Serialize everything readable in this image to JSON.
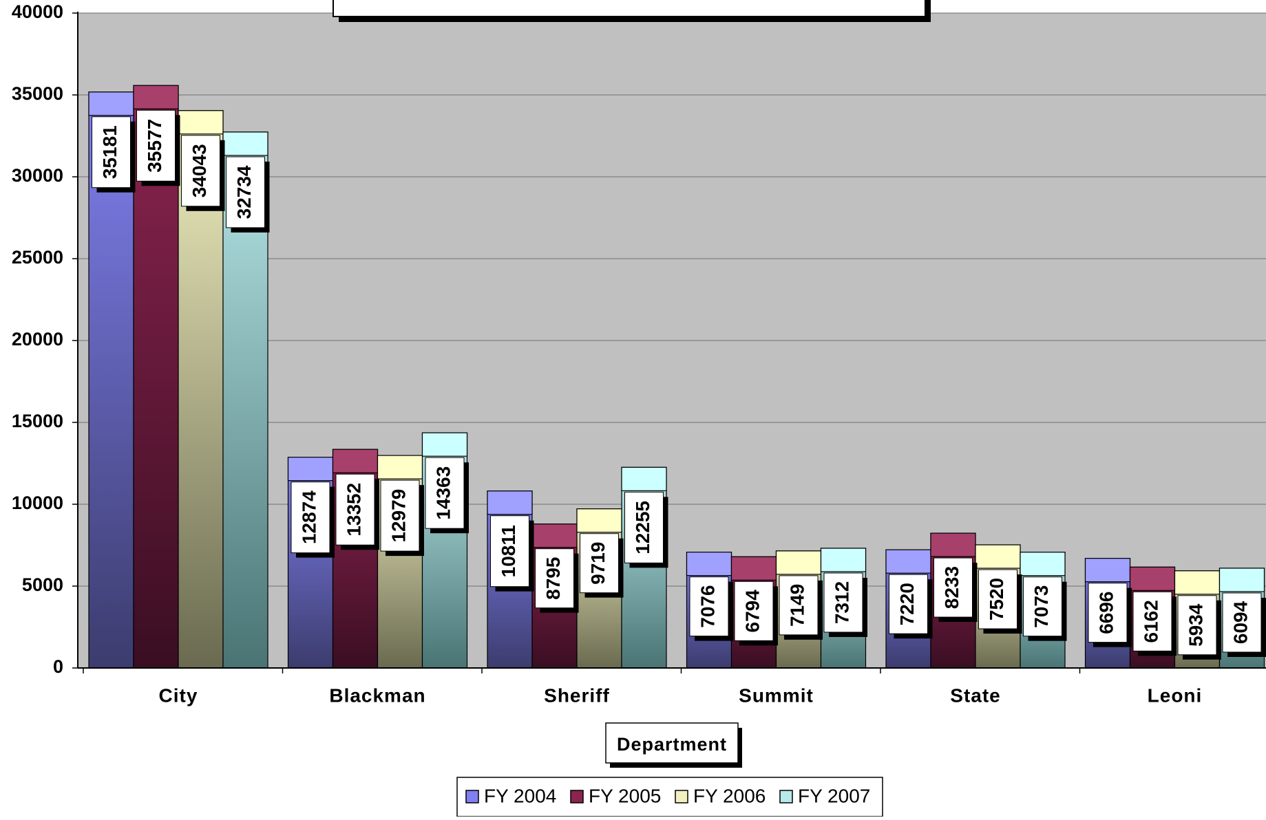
{
  "chart_data": {
    "type": "bar",
    "title": "",
    "xlabel": "Department",
    "ylabel": "",
    "ylim": [
      0,
      40000
    ],
    "yticks": [
      0,
      5000,
      10000,
      15000,
      20000,
      25000,
      30000,
      35000,
      40000
    ],
    "grid": true,
    "legend_position": "bottom",
    "categories": [
      "City",
      "Blackman",
      "Sheriff",
      "Summit",
      "State",
      "Leoni"
    ],
    "series": [
      {
        "name": "FY 2004",
        "values": [
          35181,
          12874,
          10811,
          7076,
          7220,
          6696
        ],
        "color": "#8080f0",
        "dark": "#3c3c6e",
        "top": "#a0a0ff"
      },
      {
        "name": "FY 2005",
        "values": [
          35577,
          13352,
          8795,
          6794,
          8233,
          6162
        ],
        "color": "#8c2450",
        "dark": "#3a0e22",
        "top": "#a8406c"
      },
      {
        "name": "FY 2006",
        "values": [
          34043,
          12979,
          9719,
          7149,
          7520,
          5934
        ],
        "color": "#f2f0c0",
        "dark": "#6a6a50",
        "top": "#ffffc8"
      },
      {
        "name": "FY 2007",
        "values": [
          32734,
          14363,
          12255,
          7312,
          7073,
          6094
        ],
        "color": "#b8e8ea",
        "dark": "#4a7474",
        "top": "#ccffff"
      }
    ]
  }
}
